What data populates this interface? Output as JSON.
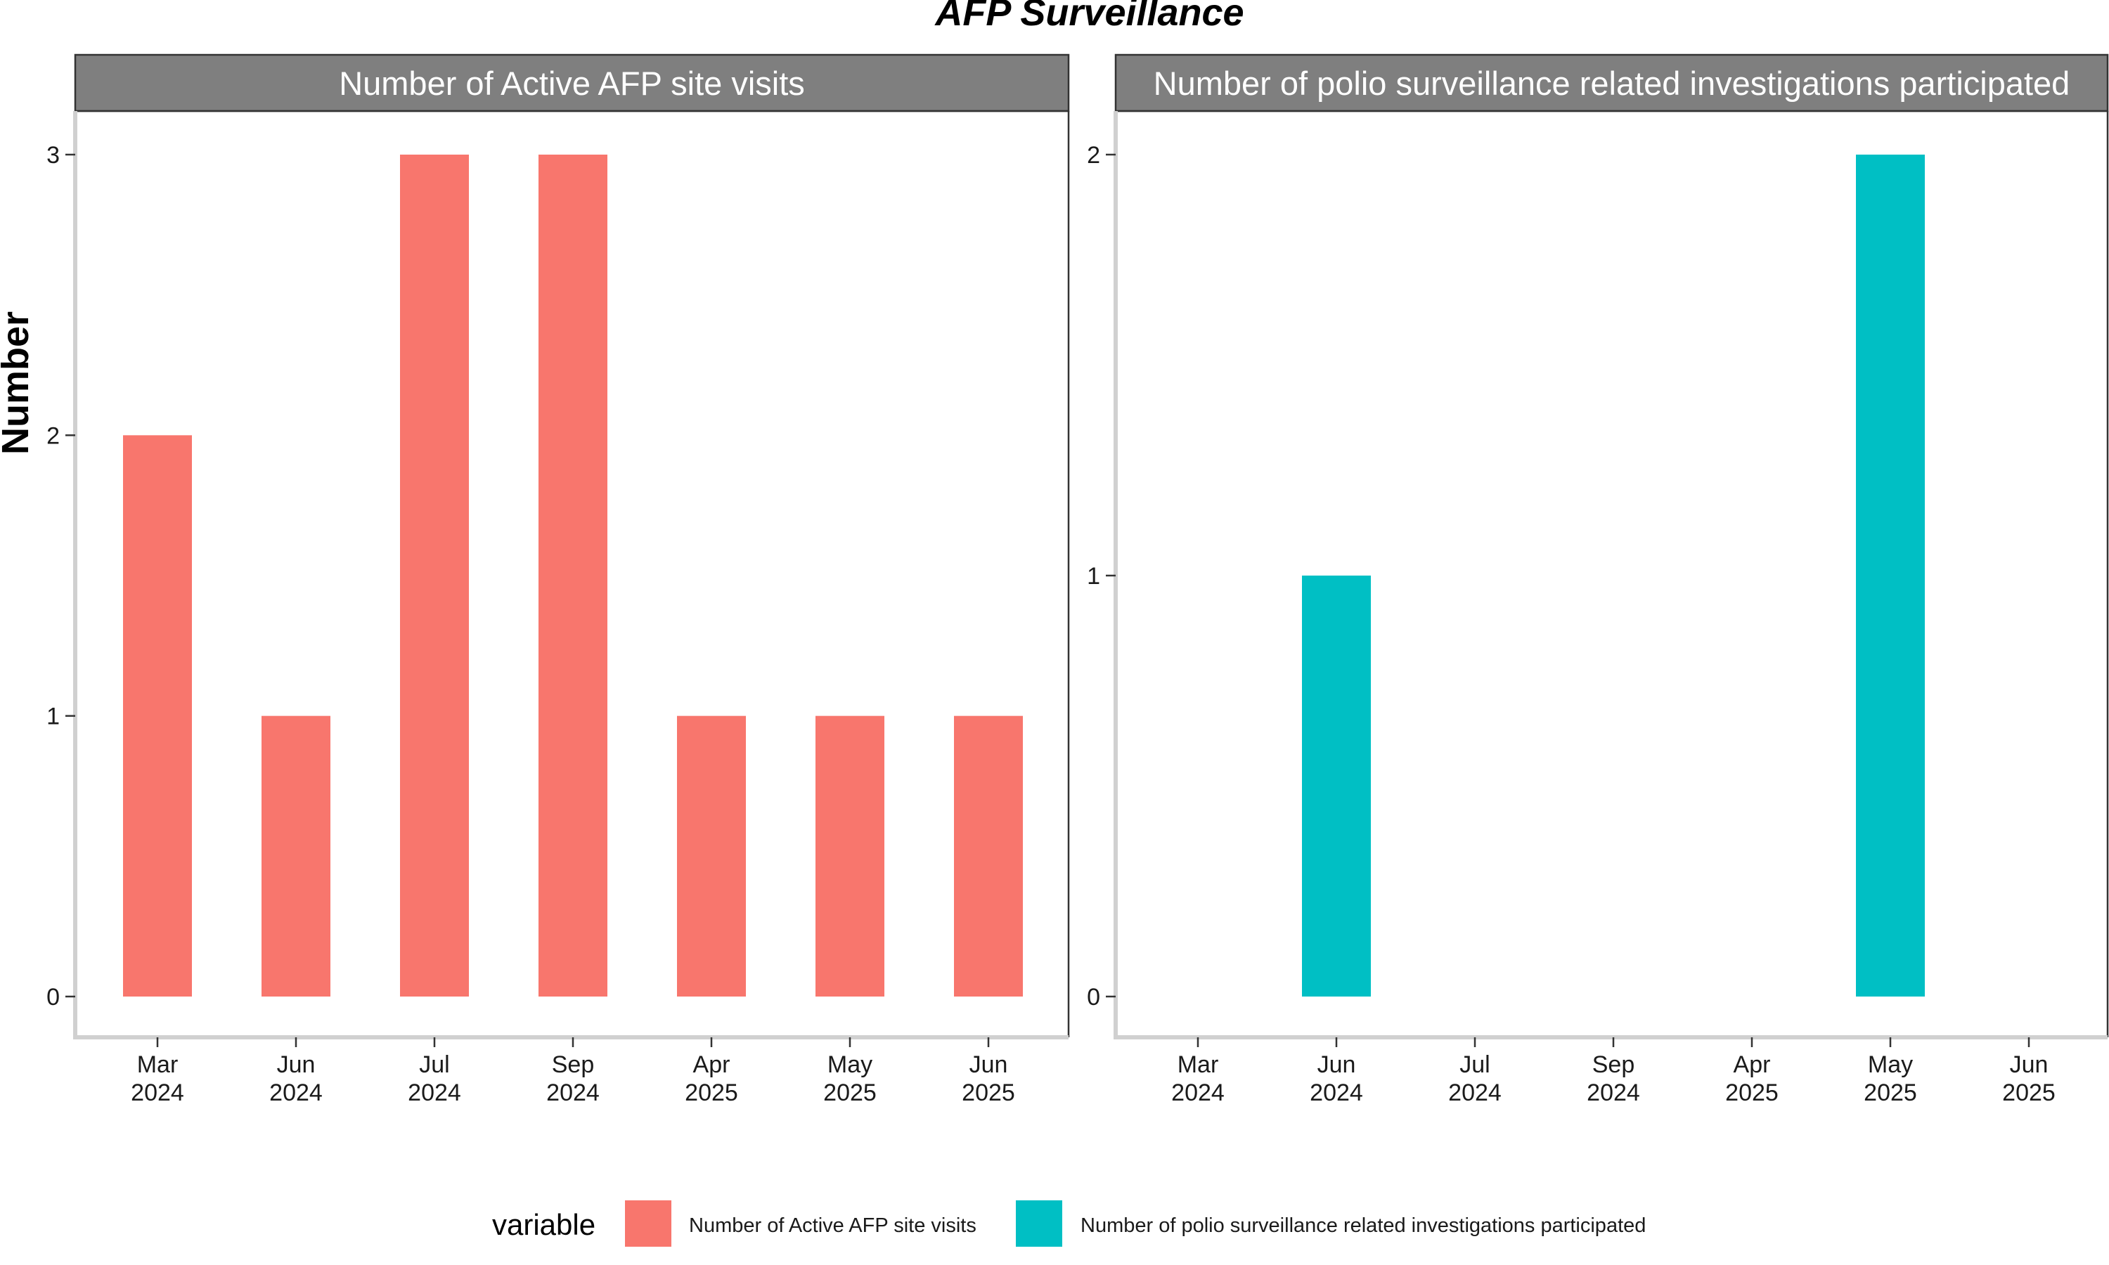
{
  "title": "AFP Surveillance",
  "ylabel": "Number",
  "legend": {
    "title": "variable",
    "entries": [
      {
        "label": "Number of Active AFP site visits",
        "color": "#F8766D"
      },
      {
        "label": "Number of polio surveillance related investigations participated",
        "color": "#00BFC4"
      }
    ]
  },
  "chart_data": [
    {
      "type": "bar",
      "title": "Number of Active AFP site visits",
      "categories": [
        "Mar\n2024",
        "Jun\n2024",
        "Jul\n2024",
        "Sep\n2024",
        "Apr\n2025",
        "May\n2025",
        "Jun\n2025"
      ],
      "values": [
        2,
        1,
        3,
        3,
        1,
        1,
        1
      ],
      "color": "#F8766D",
      "ylabel": "Number",
      "ylim": [
        0,
        3
      ],
      "yticks": [
        0,
        1,
        2,
        3
      ],
      "grid": false
    },
    {
      "type": "bar",
      "title": "Number of polio surveillance related investigations participated",
      "categories": [
        "Mar\n2024",
        "Jun\n2024",
        "Jul\n2024",
        "Sep\n2024",
        "Apr\n2025",
        "May\n2025",
        "Jun\n2025"
      ],
      "values": [
        null,
        1,
        null,
        null,
        null,
        2,
        null
      ],
      "color": "#00BFC4",
      "ylim": [
        0,
        2
      ],
      "yticks": [
        0,
        1,
        2
      ],
      "grid": false
    }
  ]
}
